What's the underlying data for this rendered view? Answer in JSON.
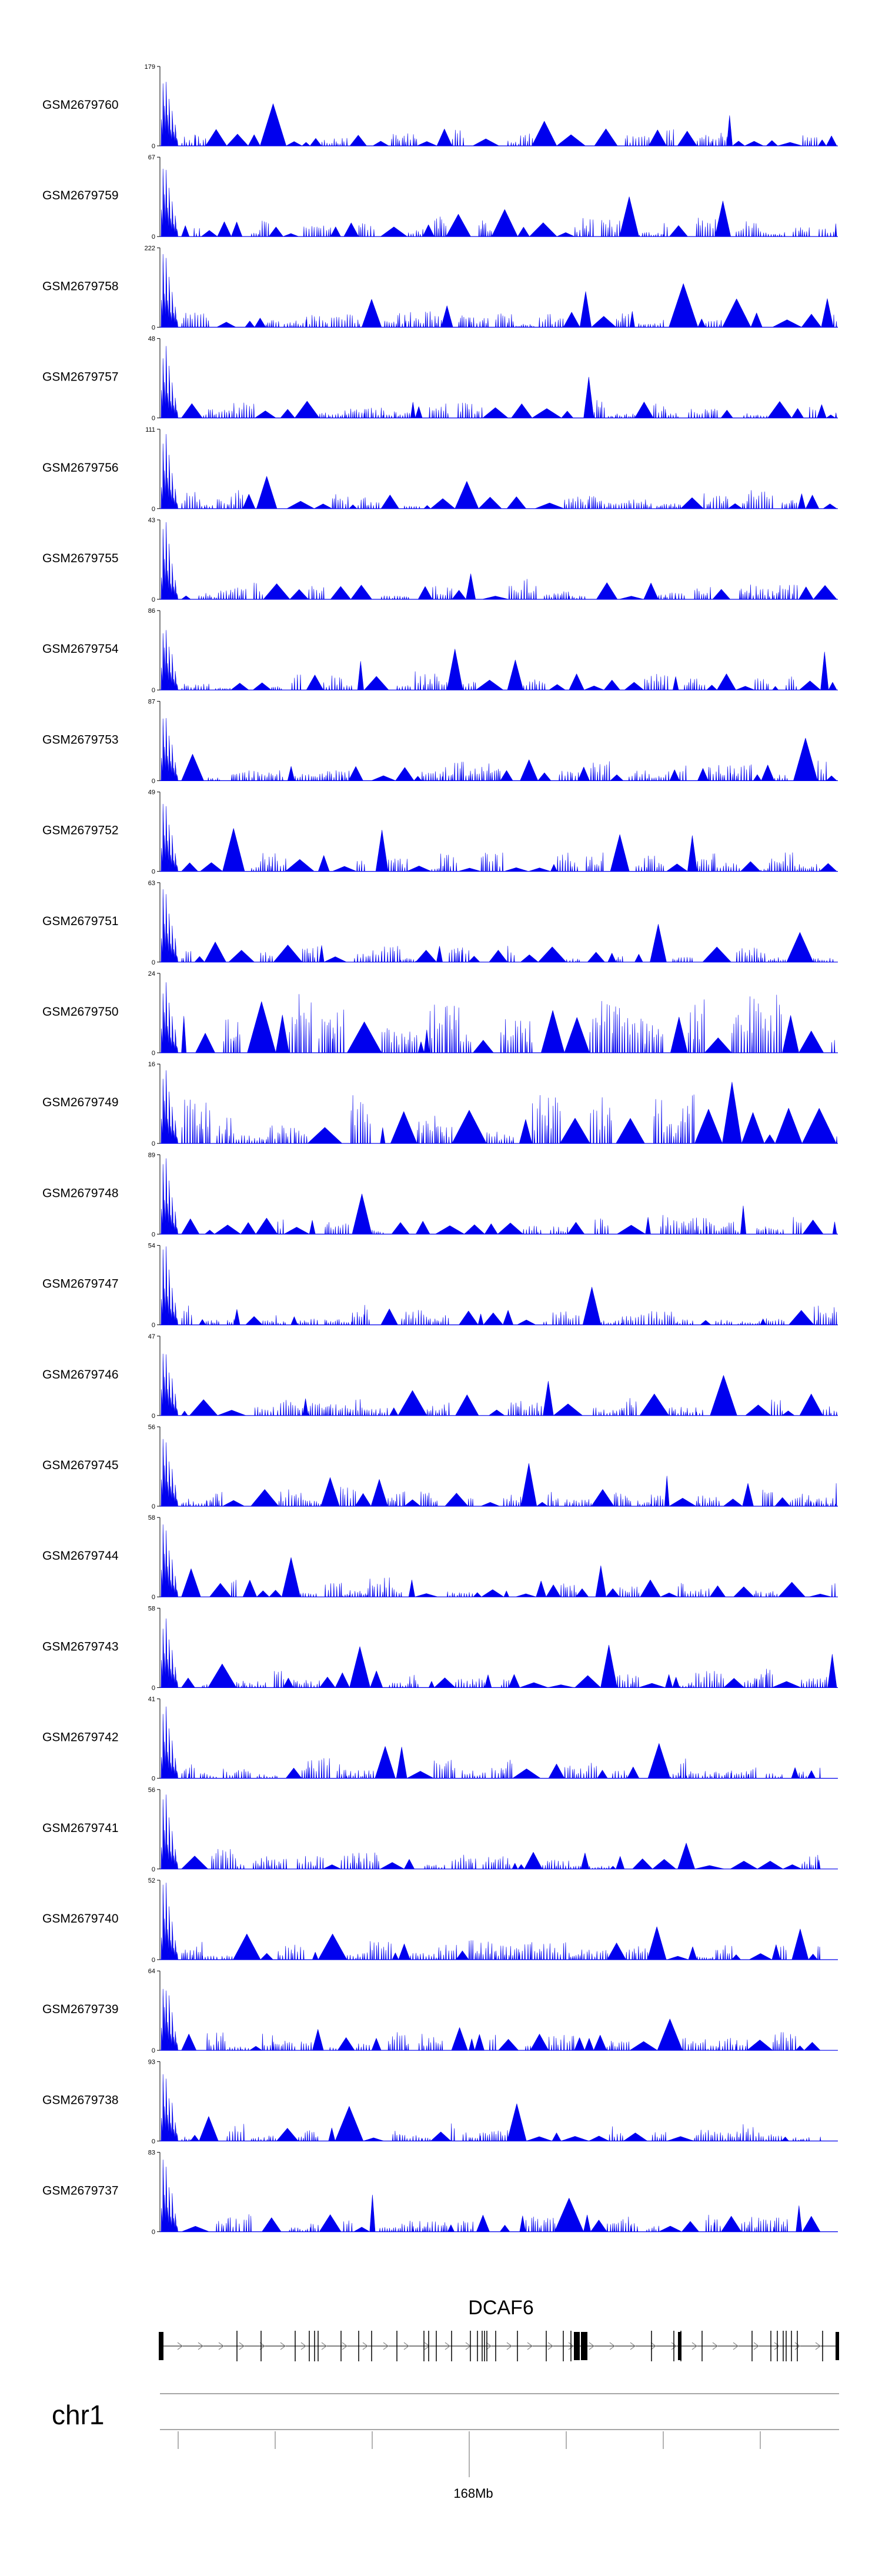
{
  "chart_data": {
    "type": "area",
    "series_color": "#0000ee",
    "tracks": [
      {
        "name": "GSM2679760",
        "ymax": 179
      },
      {
        "name": "GSM2679759",
        "ymax": 67
      },
      {
        "name": "GSM2679758",
        "ymax": 222
      },
      {
        "name": "GSM2679757",
        "ymax": 48
      },
      {
        "name": "GSM2679756",
        "ymax": 111
      },
      {
        "name": "GSM2679755",
        "ymax": 43
      },
      {
        "name": "GSM2679754",
        "ymax": 86
      },
      {
        "name": "GSM2679753",
        "ymax": 87
      },
      {
        "name": "GSM2679752",
        "ymax": 49
      },
      {
        "name": "GSM2679751",
        "ymax": 63
      },
      {
        "name": "GSM2679750",
        "ymax": 24
      },
      {
        "name": "GSM2679749",
        "ymax": 16
      },
      {
        "name": "GSM2679748",
        "ymax": 89
      },
      {
        "name": "GSM2679747",
        "ymax": 54
      },
      {
        "name": "GSM2679746",
        "ymax": 47
      },
      {
        "name": "GSM2679745",
        "ymax": 56
      },
      {
        "name": "GSM2679744",
        "ymax": 58
      },
      {
        "name": "GSM2679743",
        "ymax": 58
      },
      {
        "name": "GSM2679742",
        "ymax": 41
      },
      {
        "name": "GSM2679741",
        "ymax": 56
      },
      {
        "name": "GSM2679740",
        "ymax": 52
      },
      {
        "name": "GSM2679739",
        "ymax": 64
      },
      {
        "name": "GSM2679738",
        "ymax": 93
      },
      {
        "name": "GSM2679737",
        "ymax": 83
      }
    ],
    "ymin_label": "0",
    "gene": {
      "name": "DCAF6",
      "strand": "+"
    },
    "chromosome": "chr1",
    "x_axis": {
      "tick_labels": [
        "168Mb"
      ]
    }
  }
}
